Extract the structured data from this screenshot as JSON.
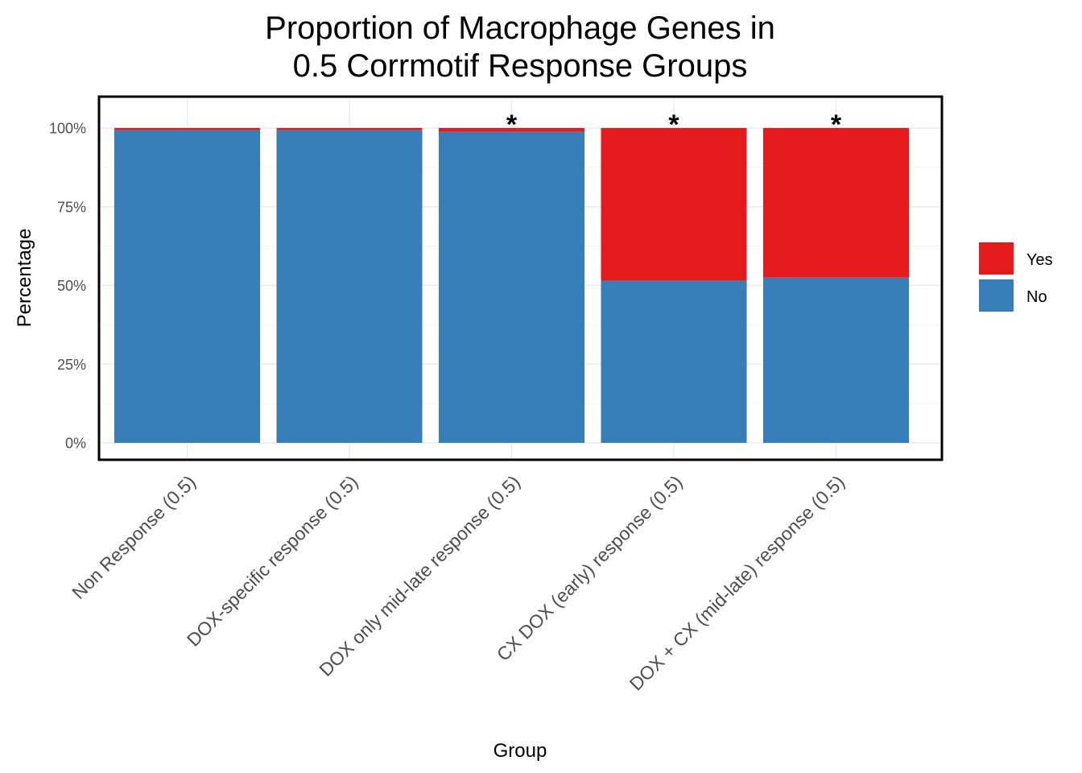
{
  "chart_data": {
    "type": "bar",
    "stacked": true,
    "title": [
      "Proportion of Macrophage Genes in",
      "0.5 Corrmotif Response Groups"
    ],
    "xlabel": "Group",
    "ylabel": "Percentage",
    "ylim": [
      0,
      1
    ],
    "yticks": [
      0,
      0.25,
      0.5,
      0.75,
      1.0
    ],
    "ytick_labels": [
      "0%",
      "25%",
      "50%",
      "75%",
      "100%"
    ],
    "categories": [
      "Non Response (0.5)",
      "DOX-specific response (0.5)",
      "DOX only mid-late response (0.5)",
      "CX DOX (early) response (0.5)",
      "DOX + CX (mid-late) response (0.5)"
    ],
    "series": [
      {
        "name": "No",
        "color": "#377EB8",
        "values": [
          0.993,
          0.993,
          0.988,
          0.515,
          0.525
        ]
      },
      {
        "name": "Yes",
        "color": "#E41A1C",
        "values": [
          0.007,
          0.007,
          0.012,
          0.485,
          0.475
        ]
      }
    ],
    "annotations": [
      "",
      "",
      "*",
      "*",
      "*"
    ],
    "legend": {
      "position": "right",
      "entries": [
        {
          "label": "Yes",
          "color": "#E41A1C"
        },
        {
          "label": "No",
          "color": "#377EB8"
        }
      ]
    },
    "grid": true
  }
}
